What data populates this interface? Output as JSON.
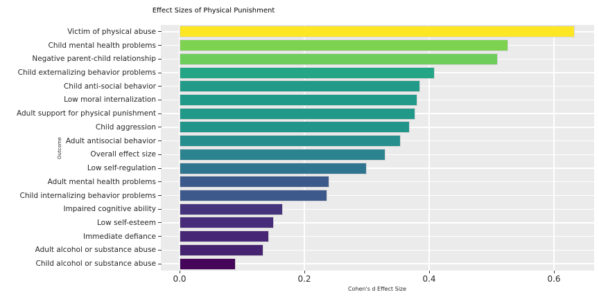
{
  "figure": {
    "background": "#ffffff",
    "panel_background": "#ebebeb",
    "gridline_color": "#ffffff",
    "text_color": "#262626",
    "bar_edge_color": "#d6d6d6"
  },
  "chart_data": {
    "type": "bar",
    "orientation": "horizontal",
    "title": "Effect Sizes of Physical Punishment",
    "xlabel": "Cohen's d Effect Size",
    "ylabel": "Outcome",
    "xlim": [
      -0.03,
      0.665
    ],
    "grid": "major gridlines, white on gray panel",
    "legend": "none",
    "colormap": "viridis (value-mapped, yellow = largest, dark purple = smallest)",
    "xticks": [
      {
        "label": "0.0",
        "value": 0.0
      },
      {
        "label": "0.2",
        "value": 0.2
      },
      {
        "label": "0.4",
        "value": 0.4
      },
      {
        "label": "0.6",
        "value": 0.6
      }
    ],
    "categories": [
      "Victim of physical abuse",
      "Child mental health problems",
      "Negative parent-child relationship",
      "Child externalizing behavior problems",
      "Child anti-social behavior",
      "Low moral internalization",
      "Adult support for physical punishment",
      "Child aggression",
      "Adult antisocial behavior",
      "Overall effect size",
      "Low self-regulation",
      "Adult mental health problems",
      "Child internalizing behavior problems",
      "Impaired cognitive ability",
      "Low self-esteem",
      "Immediate defiance",
      "Adult alcohol or substance abuse",
      "Child alcohol or substance abuse"
    ],
    "values": [
      0.633,
      0.527,
      0.51,
      0.409,
      0.386,
      0.381,
      0.378,
      0.369,
      0.354,
      0.33,
      0.3,
      0.24,
      0.237,
      0.166,
      0.151,
      0.143,
      0.134,
      0.09
    ],
    "bar_colors": [
      "#fde725",
      "#7dd250",
      "#6ecd5b",
      "#24a585",
      "#219b88",
      "#219a89",
      "#219989",
      "#21958a",
      "#268e8d",
      "#2a838f",
      "#2f748f",
      "#3c598c",
      "#3d588b",
      "#45337c",
      "#472c79",
      "#482676",
      "#462370",
      "#450559"
    ]
  }
}
